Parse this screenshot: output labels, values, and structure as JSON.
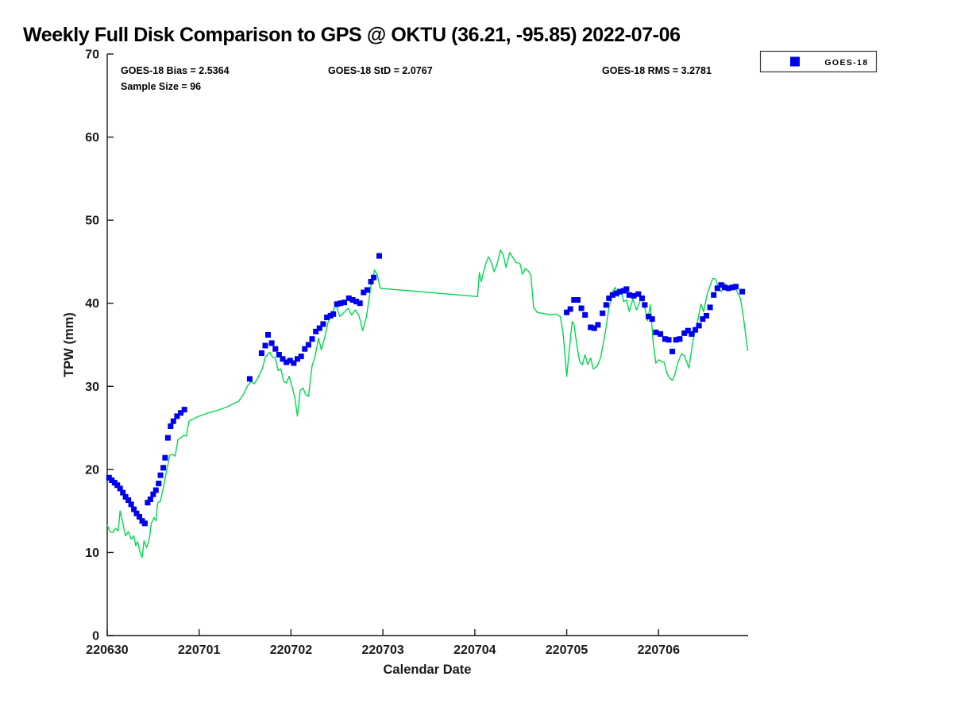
{
  "chart_data": {
    "type": "line+scatter",
    "title": "Weekly Full Disk Comparison to GPS @ OKTU (36.21, -95.85) 2022-07-06",
    "xlabel": "Calendar Date",
    "ylabel": "TPW (mm)",
    "ylim": [
      0,
      70
    ],
    "ytick_step": 10,
    "yticks": [
      0,
      10,
      20,
      30,
      40,
      50,
      60,
      70
    ],
    "xtick_labels": [
      "220630",
      "220701",
      "220702",
      "220703",
      "220704",
      "220705",
      "220706"
    ],
    "x_range_days": [
      0,
      6.98
    ],
    "grid": false,
    "legend": {
      "position": "top-right",
      "entries": [
        {
          "label": "GOES-18",
          "marker": "square",
          "color": "#0000ee"
        }
      ]
    },
    "annotations": {
      "bias": "GOES-18 Bias = 2.5364",
      "std": "GOES-18 StD = 2.0767",
      "rms": "GOES-18 RMS = 3.2781",
      "sample_size": "Sample Size = 96"
    },
    "colors": {
      "goes18_marker": "#0000ee",
      "gps_line": "#00d94f",
      "axis": "#1a1a1a",
      "background": "#ffffff"
    },
    "series": [
      {
        "name": "GOES-18",
        "type": "scatter",
        "marker": "square",
        "color": "#0000ee",
        "points": [
          [
            0.02,
            19.0
          ],
          [
            0.05,
            18.7
          ],
          [
            0.08,
            18.4
          ],
          [
            0.11,
            18.1
          ],
          [
            0.14,
            17.7
          ],
          [
            0.17,
            17.2
          ],
          [
            0.2,
            16.7
          ],
          [
            0.23,
            16.3
          ],
          [
            0.26,
            15.8
          ],
          [
            0.29,
            15.2
          ],
          [
            0.32,
            14.7
          ],
          [
            0.35,
            14.3
          ],
          [
            0.38,
            13.8
          ],
          [
            0.41,
            13.5
          ],
          [
            0.44,
            16.0
          ],
          [
            0.47,
            16.4
          ],
          [
            0.5,
            17.0
          ],
          [
            0.53,
            17.5
          ],
          [
            0.56,
            18.3
          ],
          [
            0.58,
            19.3
          ],
          [
            0.61,
            20.2
          ],
          [
            0.63,
            21.4
          ],
          [
            0.66,
            23.8
          ],
          [
            0.69,
            25.2
          ],
          [
            0.72,
            25.8
          ],
          [
            0.76,
            26.4
          ],
          [
            0.8,
            26.8
          ],
          [
            0.84,
            27.2
          ],
          [
            1.55,
            30.9
          ],
          [
            1.68,
            34.0
          ],
          [
            1.72,
            34.9
          ],
          [
            1.75,
            36.2
          ],
          [
            1.79,
            35.2
          ],
          [
            1.83,
            34.5
          ],
          [
            1.87,
            33.8
          ],
          [
            1.91,
            33.3
          ],
          [
            1.95,
            32.9
          ],
          [
            1.99,
            33.1
          ],
          [
            2.03,
            32.8
          ],
          [
            2.07,
            33.3
          ],
          [
            2.11,
            33.6
          ],
          [
            2.15,
            34.5
          ],
          [
            2.19,
            35.0
          ],
          [
            2.23,
            35.7
          ],
          [
            2.27,
            36.6
          ],
          [
            2.31,
            37.0
          ],
          [
            2.35,
            37.5
          ],
          [
            2.39,
            38.3
          ],
          [
            2.43,
            38.5
          ],
          [
            2.46,
            38.7
          ],
          [
            2.5,
            39.9
          ],
          [
            2.54,
            40.0
          ],
          [
            2.58,
            40.1
          ],
          [
            2.63,
            40.6
          ],
          [
            2.67,
            40.4
          ],
          [
            2.71,
            40.2
          ],
          [
            2.75,
            40.0
          ],
          [
            2.79,
            41.3
          ],
          [
            2.83,
            41.6
          ],
          [
            2.87,
            42.6
          ],
          [
            2.9,
            43.1
          ],
          [
            2.96,
            45.7
          ],
          [
            5.0,
            38.9
          ],
          [
            5.04,
            39.3
          ],
          [
            5.08,
            40.4
          ],
          [
            5.12,
            40.4
          ],
          [
            5.16,
            39.4
          ],
          [
            5.2,
            38.6
          ],
          [
            5.26,
            37.1
          ],
          [
            5.3,
            37.0
          ],
          [
            5.34,
            37.4
          ],
          [
            5.39,
            38.8
          ],
          [
            5.43,
            39.8
          ],
          [
            5.46,
            40.6
          ],
          [
            5.5,
            41.0
          ],
          [
            5.54,
            41.2
          ],
          [
            5.58,
            41.4
          ],
          [
            5.62,
            41.5
          ],
          [
            5.65,
            41.7
          ],
          [
            5.68,
            41.0
          ],
          [
            5.73,
            40.9
          ],
          [
            5.78,
            41.1
          ],
          [
            5.82,
            40.6
          ],
          [
            5.85,
            39.8
          ],
          [
            5.89,
            38.4
          ],
          [
            5.93,
            38.1
          ],
          [
            5.97,
            36.5
          ],
          [
            6.02,
            36.3
          ],
          [
            6.07,
            35.7
          ],
          [
            6.11,
            35.6
          ],
          [
            6.15,
            34.2
          ],
          [
            6.19,
            35.6
          ],
          [
            6.23,
            35.7
          ],
          [
            6.28,
            36.4
          ],
          [
            6.32,
            36.7
          ],
          [
            6.36,
            36.3
          ],
          [
            6.4,
            36.8
          ],
          [
            6.44,
            37.3
          ],
          [
            6.48,
            38.1
          ],
          [
            6.52,
            38.5
          ],
          [
            6.56,
            39.5
          ],
          [
            6.6,
            41.0
          ],
          [
            6.64,
            41.8
          ],
          [
            6.68,
            42.2
          ],
          [
            6.72,
            41.9
          ],
          [
            6.76,
            41.8
          ],
          [
            6.8,
            41.9
          ],
          [
            6.84,
            42.0
          ],
          [
            6.91,
            41.4
          ]
        ]
      },
      {
        "name": "GPS",
        "type": "line",
        "color": "#00d94f",
        "points": [
          [
            0.0,
            13.3
          ],
          [
            0.03,
            12.5
          ],
          [
            0.06,
            12.4
          ],
          [
            0.09,
            12.9
          ],
          [
            0.12,
            12.6
          ],
          [
            0.14,
            15.0
          ],
          [
            0.17,
            13.5
          ],
          [
            0.2,
            12.0
          ],
          [
            0.23,
            12.5
          ],
          [
            0.26,
            11.6
          ],
          [
            0.29,
            12.0
          ],
          [
            0.31,
            10.8
          ],
          [
            0.33,
            11.3
          ],
          [
            0.36,
            9.9
          ],
          [
            0.38,
            9.4
          ],
          [
            0.4,
            11.4
          ],
          [
            0.43,
            10.6
          ],
          [
            0.46,
            11.7
          ],
          [
            0.48,
            13.5
          ],
          [
            0.51,
            14.2
          ],
          [
            0.53,
            13.8
          ],
          [
            0.55,
            16.0
          ],
          [
            0.58,
            16.2
          ],
          [
            0.62,
            18.3
          ],
          [
            0.65,
            20.0
          ],
          [
            0.68,
            21.7
          ],
          [
            0.71,
            21.8
          ],
          [
            0.74,
            21.6
          ],
          [
            0.77,
            23.6
          ],
          [
            0.8,
            23.8
          ],
          [
            0.83,
            24.1
          ],
          [
            0.86,
            24.0
          ],
          [
            0.89,
            25.8
          ],
          [
            0.92,
            26.0
          ],
          [
            1.0,
            26.4
          ],
          [
            1.1,
            26.8
          ],
          [
            1.2,
            27.1
          ],
          [
            1.3,
            27.5
          ],
          [
            1.43,
            28.2
          ],
          [
            1.48,
            29.0
          ],
          [
            1.53,
            30.1
          ],
          [
            1.57,
            30.6
          ],
          [
            1.6,
            30.3
          ],
          [
            1.64,
            31.0
          ],
          [
            1.69,
            32.2
          ],
          [
            1.72,
            33.5
          ],
          [
            1.75,
            33.9
          ],
          [
            1.77,
            34.1
          ],
          [
            1.8,
            33.5
          ],
          [
            1.83,
            33.4
          ],
          [
            1.86,
            31.9
          ],
          [
            1.89,
            32.1
          ],
          [
            1.92,
            30.6
          ],
          [
            1.95,
            30.4
          ],
          [
            1.98,
            31.2
          ],
          [
            2.01,
            30.0
          ],
          [
            2.04,
            28.7
          ],
          [
            2.07,
            26.4
          ],
          [
            2.1,
            29.5
          ],
          [
            2.13,
            29.8
          ],
          [
            2.16,
            29.0
          ],
          [
            2.19,
            28.8
          ],
          [
            2.23,
            32.5
          ],
          [
            2.26,
            33.5
          ],
          [
            2.3,
            35.8
          ],
          [
            2.33,
            34.4
          ],
          [
            2.37,
            36.0
          ],
          [
            2.4,
            37.6
          ],
          [
            2.44,
            38.7
          ],
          [
            2.49,
            39.8
          ],
          [
            2.53,
            38.4
          ],
          [
            2.57,
            38.8
          ],
          [
            2.62,
            39.4
          ],
          [
            2.66,
            38.6
          ],
          [
            2.7,
            39.2
          ],
          [
            2.74,
            38.5
          ],
          [
            2.78,
            36.7
          ],
          [
            2.82,
            38.3
          ],
          [
            2.87,
            42.1
          ],
          [
            2.91,
            44.0
          ],
          [
            2.94,
            43.4
          ],
          [
            2.97,
            41.8
          ],
          [
            3.5,
            41.3
          ],
          [
            4.03,
            40.8
          ],
          [
            4.05,
            43.7
          ],
          [
            4.07,
            42.6
          ],
          [
            4.09,
            43.5
          ],
          [
            4.12,
            44.8
          ],
          [
            4.15,
            45.6
          ],
          [
            4.18,
            44.9
          ],
          [
            4.21,
            43.8
          ],
          [
            4.24,
            44.6
          ],
          [
            4.28,
            46.4
          ],
          [
            4.31,
            45.8
          ],
          [
            4.34,
            44.3
          ],
          [
            4.38,
            46.1
          ],
          [
            4.42,
            45.4
          ],
          [
            4.45,
            44.9
          ],
          [
            4.49,
            44.8
          ],
          [
            4.52,
            43.5
          ],
          [
            4.55,
            44.2
          ],
          [
            4.58,
            43.9
          ],
          [
            4.61,
            43.4
          ],
          [
            4.64,
            39.5
          ],
          [
            4.68,
            38.9
          ],
          [
            4.73,
            38.8
          ],
          [
            4.78,
            38.7
          ],
          [
            4.83,
            38.6
          ],
          [
            4.88,
            38.7
          ],
          [
            4.93,
            38.4
          ],
          [
            4.96,
            36.5
          ],
          [
            5.0,
            31.2
          ],
          [
            5.03,
            34.5
          ],
          [
            5.06,
            37.8
          ],
          [
            5.08,
            37.4
          ],
          [
            5.11,
            35.0
          ],
          [
            5.14,
            33.0
          ],
          [
            5.17,
            32.6
          ],
          [
            5.2,
            33.8
          ],
          [
            5.23,
            32.6
          ],
          [
            5.26,
            33.4
          ],
          [
            5.29,
            32.1
          ],
          [
            5.33,
            32.4
          ],
          [
            5.37,
            33.5
          ],
          [
            5.42,
            36.5
          ],
          [
            5.46,
            39.5
          ],
          [
            5.5,
            41.4
          ],
          [
            5.53,
            41.9
          ],
          [
            5.56,
            40.8
          ],
          [
            5.59,
            41.6
          ],
          [
            5.62,
            40.2
          ],
          [
            5.65,
            40.4
          ],
          [
            5.68,
            39.0
          ],
          [
            5.72,
            40.5
          ],
          [
            5.76,
            39.2
          ],
          [
            5.81,
            40.6
          ],
          [
            5.84,
            40.0
          ],
          [
            5.88,
            37.9
          ],
          [
            5.91,
            39.8
          ],
          [
            5.94,
            35.4
          ],
          [
            5.97,
            32.8
          ],
          [
            6.0,
            33.2
          ],
          [
            6.03,
            33.0
          ],
          [
            6.06,
            32.9
          ],
          [
            6.09,
            31.6
          ],
          [
            6.12,
            31.0
          ],
          [
            6.15,
            30.7
          ],
          [
            6.18,
            31.5
          ],
          [
            6.21,
            32.9
          ],
          [
            6.25,
            33.9
          ],
          [
            6.28,
            33.7
          ],
          [
            6.33,
            32.2
          ],
          [
            6.37,
            35.2
          ],
          [
            6.4,
            36.8
          ],
          [
            6.43,
            38.1
          ],
          [
            6.46,
            39.9
          ],
          [
            6.49,
            39.0
          ],
          [
            6.53,
            41.1
          ],
          [
            6.56,
            42.1
          ],
          [
            6.59,
            43.0
          ],
          [
            6.62,
            42.9
          ],
          [
            6.65,
            41.9
          ],
          [
            6.68,
            41.4
          ],
          [
            6.72,
            42.4
          ],
          [
            6.75,
            41.6
          ],
          [
            6.78,
            41.8
          ],
          [
            6.81,
            42.2
          ],
          [
            6.85,
            41.5
          ],
          [
            6.89,
            40.6
          ],
          [
            6.92,
            38.6
          ],
          [
            6.95,
            36.0
          ],
          [
            6.97,
            34.3
          ]
        ]
      }
    ]
  }
}
